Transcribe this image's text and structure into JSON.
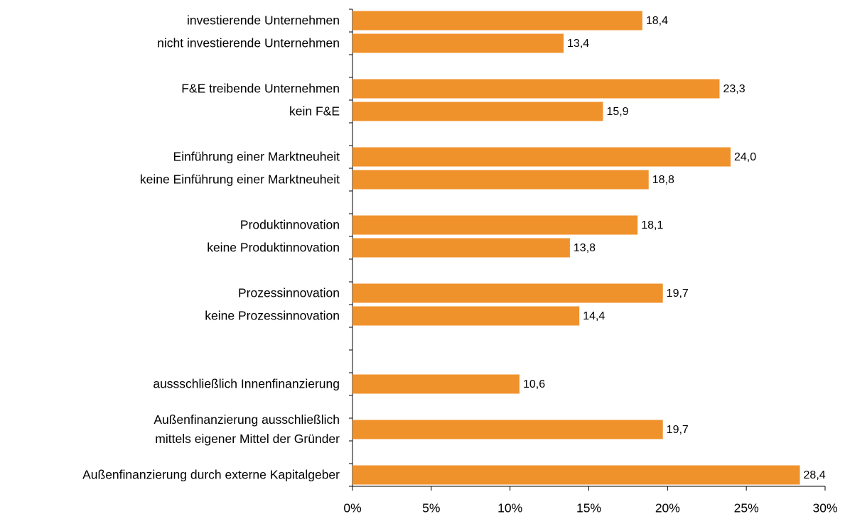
{
  "chart_data": {
    "type": "barh",
    "categories": [
      "investierende Unternehmen",
      "nicht investierende Unternehmen",
      null,
      "F&E treibende Unternehmen",
      "kein F&E",
      null,
      "Einführung einer Marktneuheit",
      "keine Einführung einer Marktneuheit",
      null,
      "Produktinnovation",
      "keine Produktinnovation",
      null,
      "Prozessinnovation",
      "keine Prozessinnovation",
      null,
      null,
      "aussschließlich Innenfinanzierung",
      null,
      "Außenfinanzierung ausschließlich \nmittels eigener Mittel der Gründer",
      null,
      "Außenfinanzierung durch externe Kapitalgeber"
    ],
    "values": [
      18.4,
      13.4,
      null,
      23.3,
      15.9,
      null,
      24.0,
      18.8,
      null,
      18.1,
      13.8,
      null,
      19.7,
      14.4,
      null,
      null,
      10.6,
      null,
      19.7,
      null,
      28.4
    ],
    "value_labels": [
      "18,4",
      "13,4",
      null,
      "23,3",
      "15,9",
      null,
      "24,0",
      "18,8",
      null,
      "18,1",
      "13,8",
      null,
      "19,7",
      "14,4",
      null,
      null,
      "10,6",
      null,
      "19,7",
      null,
      "28,4"
    ],
    "color": "#f0922b",
    "xlim": [
      0,
      30
    ],
    "xticks": [
      {
        "value": 0,
        "label": "0%"
      },
      {
        "value": 5,
        "label": "5%"
      },
      {
        "value": 10,
        "label": "10%"
      },
      {
        "value": 15,
        "label": "15%"
      },
      {
        "value": 20,
        "label": "20%"
      },
      {
        "value": 25,
        "label": "25%"
      },
      {
        "value": 30,
        "label": "30%"
      }
    ],
    "grid": false
  }
}
